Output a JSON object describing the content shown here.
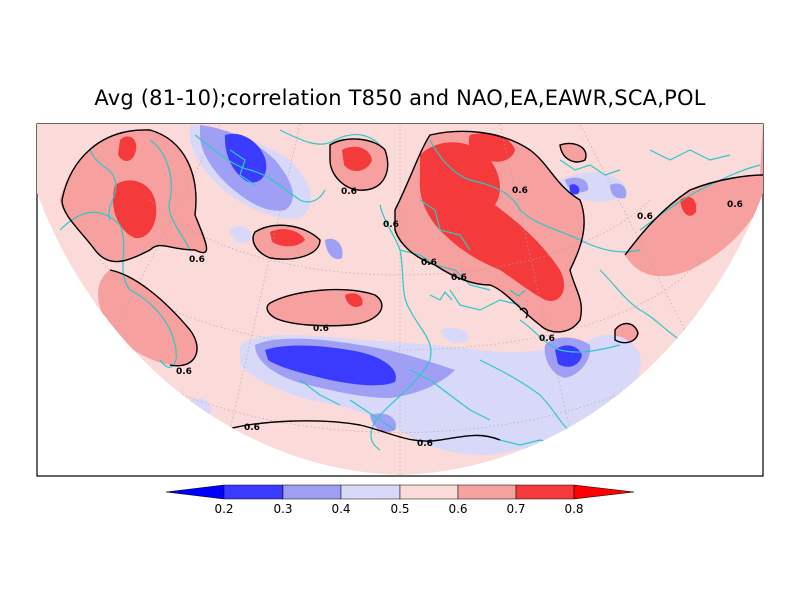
{
  "title": "Avg (81-10);correlation T850 and NAO,EA,EAWR,SCA,POL",
  "contour": {
    "level_label": "0.6",
    "labels": [
      "0.6",
      "0.6",
      "0.6",
      "0.6",
      "0.6",
      "0.6",
      "0.6",
      "0.6",
      "0.6",
      "0.6",
      "0.6",
      "0.6"
    ]
  },
  "colorbar": {
    "ticks": [
      "0.2",
      "0.3",
      "0.4",
      "0.5",
      "0.6",
      "0.7",
      "0.8"
    ],
    "bins": [
      {
        "color": "#0000ff",
        "name": "lt-0.2"
      },
      {
        "color": "#3b3bff",
        "name": "0.2-0.3"
      },
      {
        "color": "#9f9ff5",
        "name": "0.3-0.4"
      },
      {
        "color": "#d8d8f8",
        "name": "0.4-0.5"
      },
      {
        "color": "#fbdada",
        "name": "0.5-0.6"
      },
      {
        "color": "#f6a0a0",
        "name": "0.6-0.7"
      },
      {
        "color": "#f43a3a",
        "name": "0.7-0.8"
      },
      {
        "color": "#ff0000",
        "name": "gt-0.8"
      }
    ]
  },
  "colors": {
    "background_field": "#fbdada",
    "coastline": "#2ec8c8",
    "contour_line": "#000000",
    "frame": "#000000"
  }
}
